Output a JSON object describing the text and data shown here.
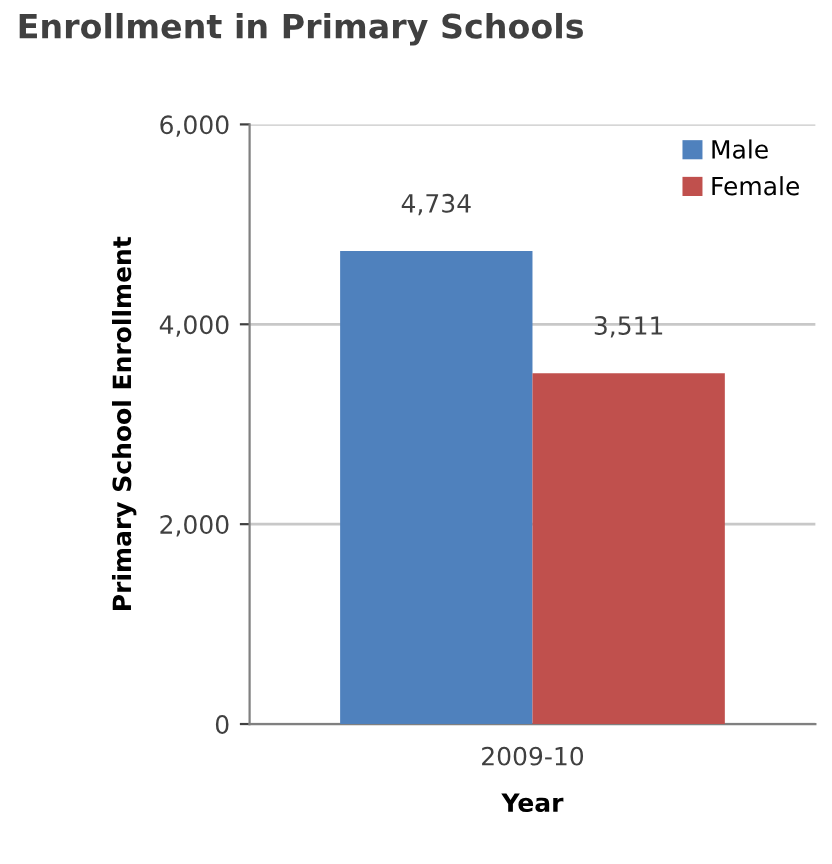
{
  "chart_data": {
    "type": "bar",
    "title": "Enrollment in Primary Schools",
    "xlabel": "Year",
    "ylabel": "Primary School Enrollment",
    "categories": [
      "2009-10"
    ],
    "series": [
      {
        "name": "Male",
        "color": "#4f81bd",
        "values": [
          4734
        ],
        "value_labels": [
          "4,734"
        ]
      },
      {
        "name": "Female",
        "color": "#c0504d",
        "values": [
          3511
        ],
        "value_labels": [
          "3,511"
        ]
      }
    ],
    "ylim": [
      0,
      6000
    ],
    "yticks": [
      0,
      {
        "value": 2000,
        "label": "2,000"
      },
      {
        "value": 4000,
        "label": "4,000"
      },
      {
        "value": 6000,
        "label": "6,000"
      }
    ],
    "grid": "y",
    "legend": "top right"
  }
}
